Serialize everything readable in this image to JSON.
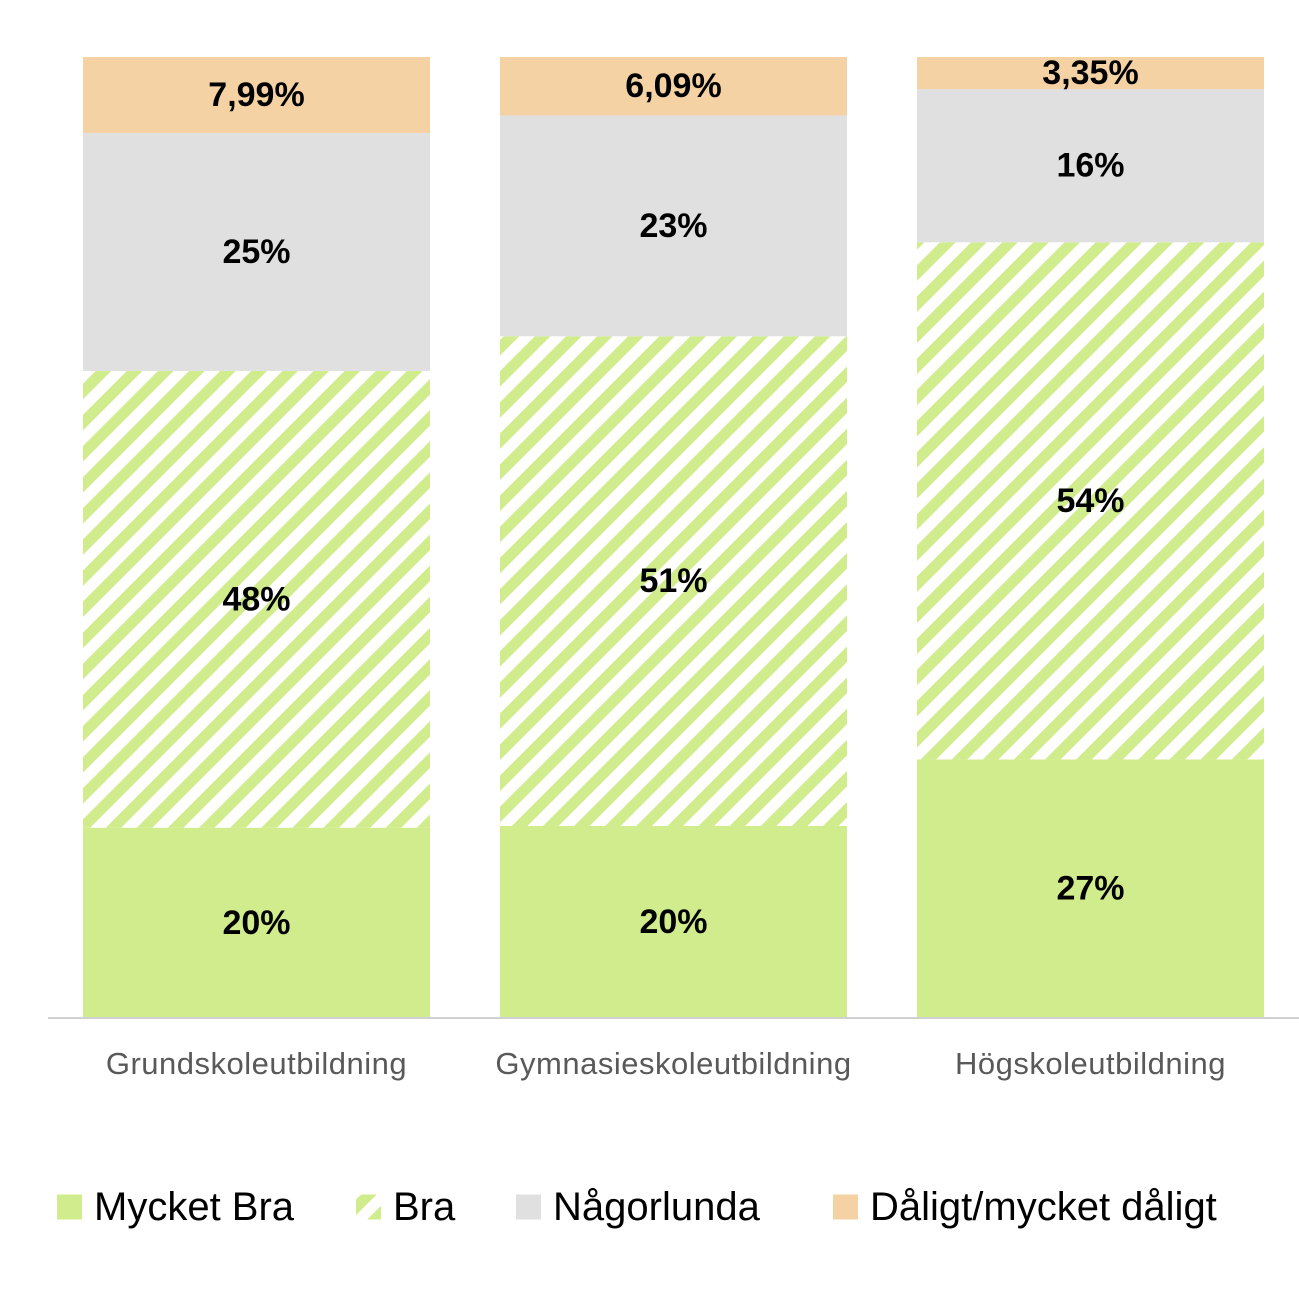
{
  "chart_data": {
    "type": "bar",
    "stacked": true,
    "percent_stacked": true,
    "categories": [
      "Grundskoleutbildning",
      "Gymnasieskoleutbildning",
      "Högskoleutbildning"
    ],
    "series": [
      {
        "name": "Mycket Bra",
        "values": [
          20,
          20,
          27
        ],
        "labels": [
          "20%",
          "20%",
          "27%"
        ],
        "color": "#d0ec8c",
        "pattern": "solid"
      },
      {
        "name": "Bra",
        "values": [
          48,
          51,
          54
        ],
        "labels": [
          "48%",
          "51%",
          "54%"
        ],
        "color": "#d0ec8c",
        "pattern": "diagonal-stripes"
      },
      {
        "name": "Någorlunda",
        "values": [
          25,
          23,
          16
        ],
        "labels": [
          "25%",
          "23%",
          "16%"
        ],
        "color": "#e0e0e0",
        "pattern": "solid"
      },
      {
        "name": "Dåligt/mycket dåligt",
        "values": [
          7.99,
          6.09,
          3.35
        ],
        "labels": [
          "7,99%",
          "6,09%",
          "3,35%"
        ],
        "color": "#f4d2a4",
        "pattern": "solid"
      }
    ],
    "ylim": [
      0,
      100
    ],
    "grid": false,
    "legend_position": "bottom"
  }
}
